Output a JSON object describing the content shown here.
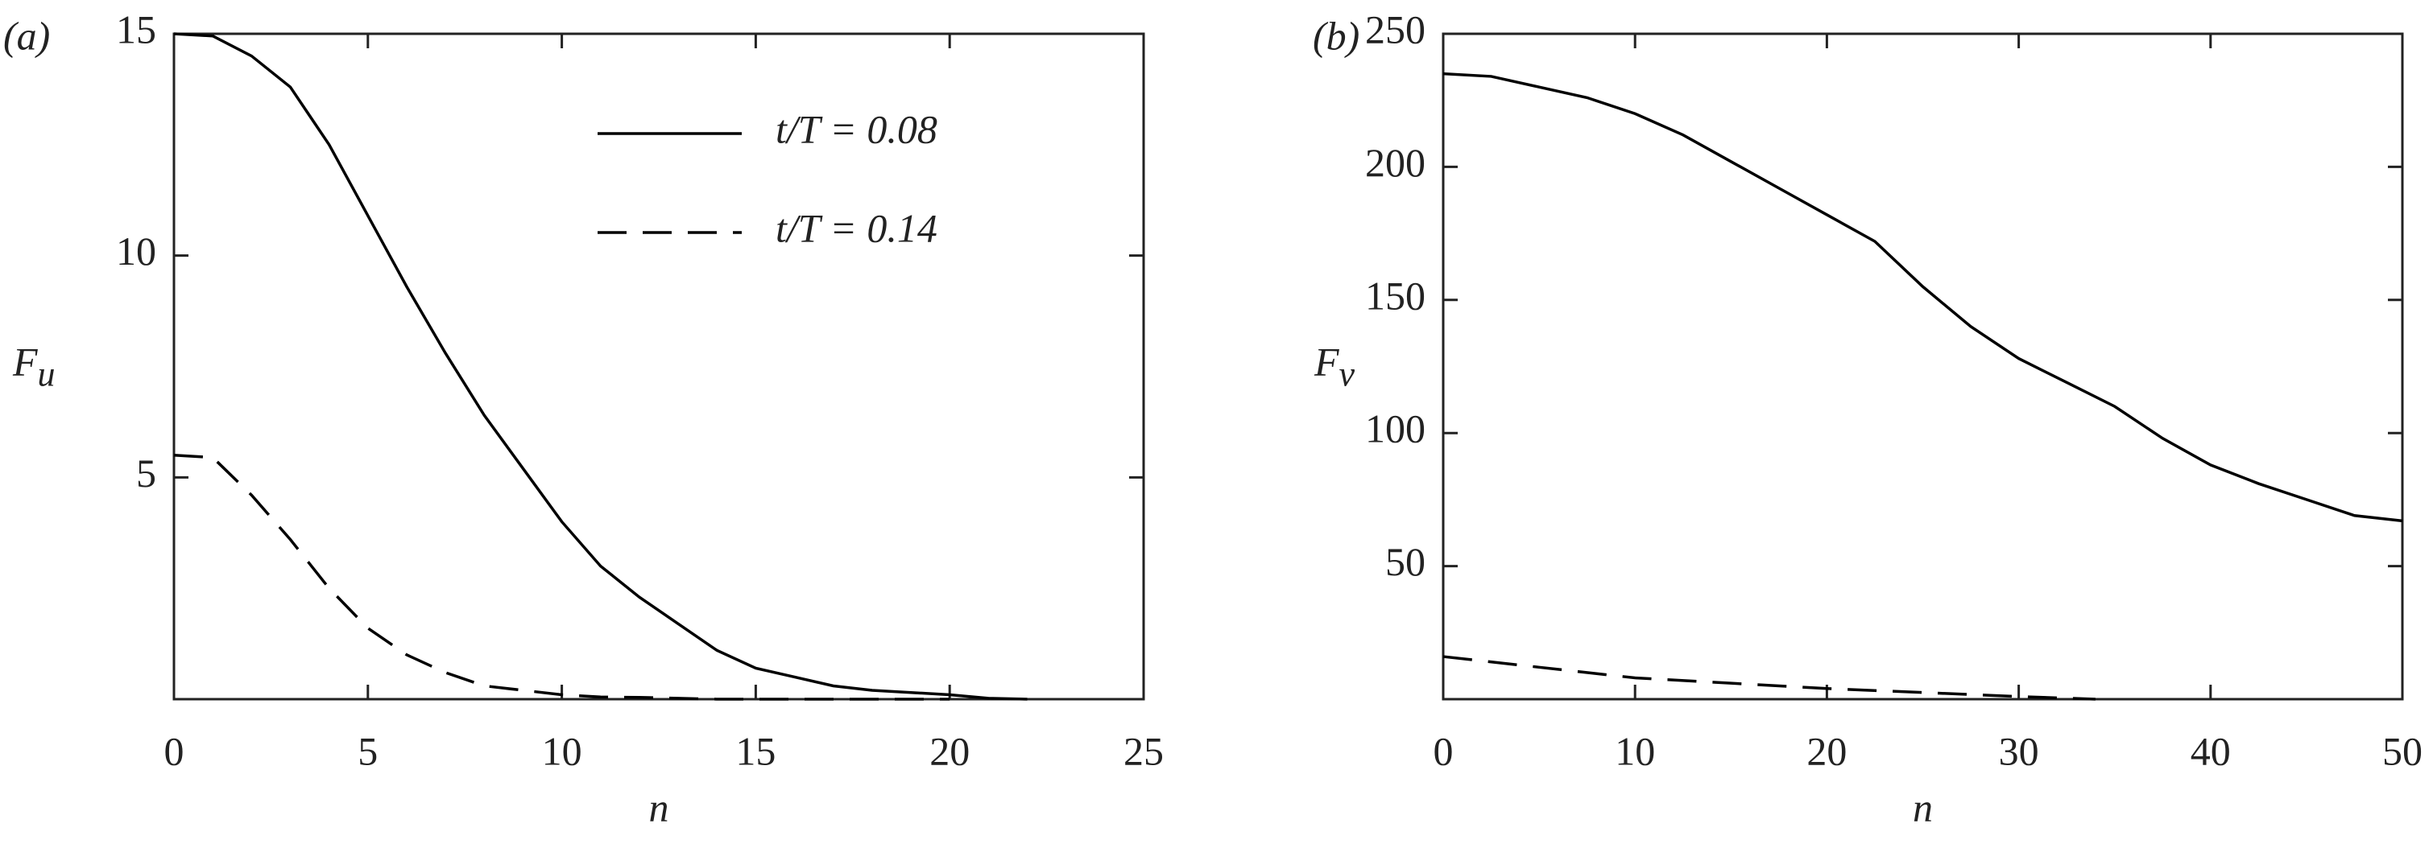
{
  "chart_data": [
    {
      "type": "line",
      "panel_label": "(a)",
      "xlabel": "n",
      "ylabel": "F",
      "ylabel_sub": "u",
      "xlim": [
        0,
        25
      ],
      "ylim": [
        0,
        15
      ],
      "xticks": [
        0,
        5,
        10,
        15,
        20,
        25
      ],
      "yticks": [
        5,
        10,
        15
      ],
      "legend": true,
      "series": [
        {
          "name": "t/T = 0.08",
          "color": "#000000",
          "linestyle": "solid",
          "x": [
            0,
            1,
            2,
            3,
            4,
            5,
            6,
            7,
            8,
            9,
            10,
            11,
            12,
            13,
            14,
            15,
            16,
            17,
            18,
            19,
            20,
            21,
            22
          ],
          "values": [
            15,
            14.95,
            14.5,
            13.8,
            12.5,
            10.9,
            9.3,
            7.8,
            6.4,
            5.2,
            4.0,
            3.0,
            2.3,
            1.7,
            1.1,
            0.7,
            0.5,
            0.3,
            0.2,
            0.15,
            0.1,
            0.02,
            0
          ]
        },
        {
          "name": "t/T = 0.14",
          "color": "#000000",
          "linestyle": "dashed",
          "x": [
            0,
            1,
            2,
            3,
            4,
            5,
            6,
            7,
            8,
            9,
            10,
            11,
            12,
            13,
            14,
            15,
            16,
            17,
            18,
            19,
            20
          ],
          "values": [
            5.5,
            5.45,
            4.6,
            3.6,
            2.5,
            1.6,
            1.0,
            0.6,
            0.3,
            0.2,
            0.1,
            0.05,
            0.04,
            0.02,
            0,
            0,
            0,
            0,
            0,
            0,
            0
          ]
        }
      ]
    },
    {
      "type": "line",
      "panel_label": "(b)",
      "xlabel": "n",
      "ylabel": "F",
      "ylabel_sub": "v",
      "xlim": [
        0,
        50
      ],
      "ylim": [
        0,
        250
      ],
      "xticks": [
        0,
        10,
        20,
        30,
        40,
        50
      ],
      "yticks": [
        50,
        100,
        150,
        200,
        250
      ],
      "legend": false,
      "series": [
        {
          "color": "#000000",
          "linestyle": "solid",
          "x": [
            0,
            2.5,
            5,
            7.5,
            10,
            12.5,
            15,
            17.5,
            20,
            22.5,
            25,
            27.5,
            30,
            32.5,
            35,
            37.5,
            40,
            42.5,
            45,
            47.5,
            50
          ],
          "values": [
            235,
            234,
            230,
            226,
            220,
            212,
            202,
            192,
            182,
            172,
            155,
            140,
            128,
            119,
            110,
            98,
            88,
            81,
            75,
            69,
            67
          ]
        },
        {
          "color": "#000000",
          "linestyle": "dashed",
          "x": [
            0,
            5,
            10,
            15,
            20,
            25,
            30,
            34
          ],
          "values": [
            16,
            12,
            8,
            6,
            4,
            2.5,
            1,
            0
          ]
        }
      ]
    }
  ]
}
